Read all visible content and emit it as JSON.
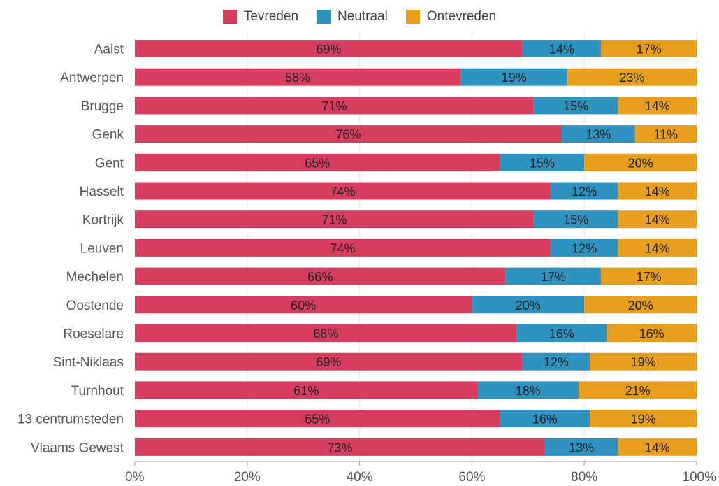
{
  "colors": {
    "Tevreden": "#d63d5e",
    "Neutraal": "#2e93c1",
    "Ontevreden": "#e89e1d"
  },
  "legend": [
    {
      "label": "Tevreden",
      "color": "#d63d5e"
    },
    {
      "label": "Neutraal",
      "color": "#2e93c1"
    },
    {
      "label": "Ontevreden",
      "color": "#e89e1d"
    }
  ],
  "chart_data": {
    "type": "bar",
    "orientation": "horizontal",
    "stacked": true,
    "categories": [
      "Aalst",
      "Antwerpen",
      "Brugge",
      "Genk",
      "Gent",
      "Hasselt",
      "Kortrijk",
      "Leuven",
      "Mechelen",
      "Oostende",
      "Roeselare",
      "Sint-Niklaas",
      "Turnhout",
      "13 centrumsteden",
      "Vlaams Gewest"
    ],
    "series": [
      {
        "name": "Tevreden",
        "values": [
          69,
          58,
          71,
          76,
          65,
          74,
          71,
          74,
          66,
          60,
          68,
          69,
          61,
          65,
          73
        ]
      },
      {
        "name": "Neutraal",
        "values": [
          14,
          19,
          15,
          13,
          15,
          12,
          15,
          12,
          17,
          20,
          16,
          12,
          18,
          16,
          13
        ]
      },
      {
        "name": "Ontevreden",
        "values": [
          17,
          23,
          14,
          11,
          20,
          14,
          14,
          14,
          17,
          20,
          16,
          19,
          21,
          19,
          14
        ]
      }
    ],
    "xlim": [
      0,
      100
    ],
    "xticks": [
      "0%",
      "20%",
      "40%",
      "60%",
      "80%",
      "100%"
    ],
    "value_suffix": "%",
    "legend_position": "top-center",
    "grid": true
  }
}
